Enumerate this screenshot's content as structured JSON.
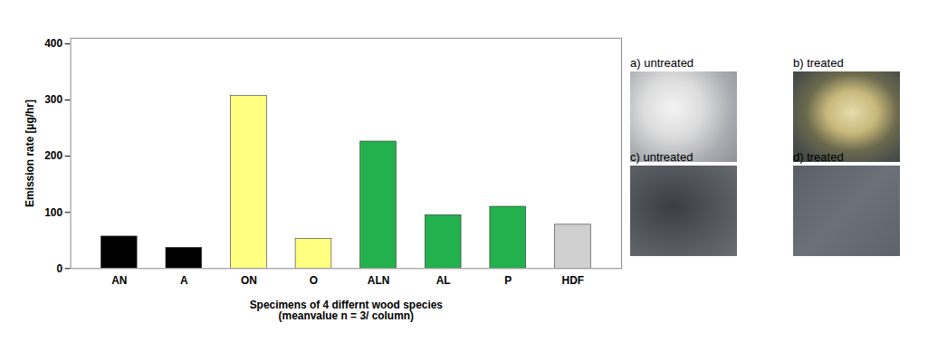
{
  "chart_data": {
    "type": "bar",
    "categories": [
      "AN",
      "A",
      "ON",
      "O",
      "ALN",
      "AL",
      "P",
      "HDF"
    ],
    "values": [
      57,
      37,
      307,
      53,
      226,
      95,
      110,
      78
    ],
    "colors": [
      "#000000",
      "#000000",
      "#ffff80",
      "#ffff80",
      "#22b14c",
      "#22b14c",
      "#22b14c",
      "#d0d0d0"
    ],
    "y_label": "Emission rate [µg/hr]",
    "x_label": "Specimens of 4 differnt wood species\n(meanvalue n = 3/ column)",
    "ylim": [
      0,
      410
    ],
    "yticks": [
      0,
      100,
      200,
      300,
      400
    ],
    "grid": false
  },
  "panels": [
    {
      "label": "a) untreated"
    },
    {
      "label": "b) treated"
    },
    {
      "label": "c) untreated"
    },
    {
      "label": "d) treated"
    }
  ]
}
